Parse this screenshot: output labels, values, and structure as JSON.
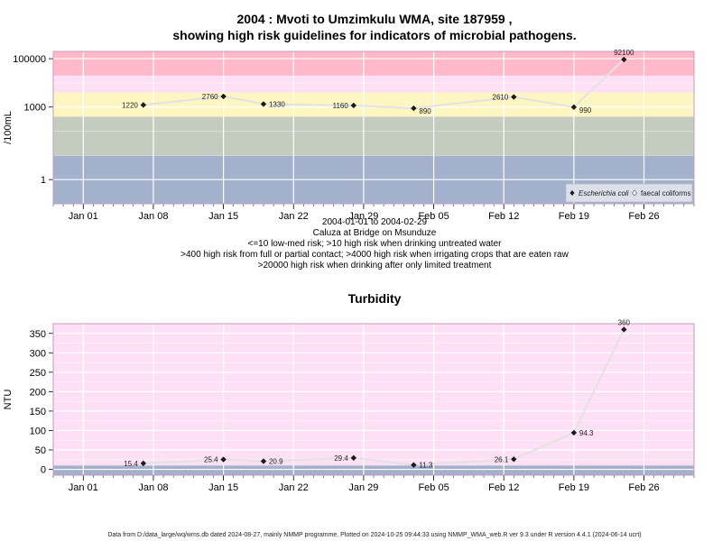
{
  "chart_data": [
    {
      "type": "line",
      "title": "2004 : Mvoti to Umzimkulu WMA, site 187959 ,",
      "subtitle": "showing high risk guidelines for indicators of microbial pathogens.",
      "ylabel": "/100mL",
      "yscale": "log",
      "ylim": [
        0.1,
        200000
      ],
      "xlim": [
        "2003-12-29",
        "2004-03-02"
      ],
      "yticks": [
        {
          "value": 1,
          "label": "1"
        },
        {
          "value": 1000,
          "label": "1000"
        },
        {
          "value": 100000,
          "label": "100000"
        }
      ],
      "xticks": [
        {
          "date": "2004-01-01",
          "label": "Jan 01"
        },
        {
          "date": "2004-01-08",
          "label": "Jan 08"
        },
        {
          "date": "2004-01-15",
          "label": "Jan 15"
        },
        {
          "date": "2004-01-22",
          "label": "Jan 22"
        },
        {
          "date": "2004-01-29",
          "label": "Jan 29"
        },
        {
          "date": "2004-02-05",
          "label": "Feb 05"
        },
        {
          "date": "2004-02-12",
          "label": "Feb 12"
        },
        {
          "date": "2004-02-19",
          "label": "Feb 19"
        },
        {
          "date": "2004-02-26",
          "label": "Feb 26"
        }
      ],
      "bands": [
        {
          "from": 0.1,
          "to": 10,
          "color": "#a3b1cc"
        },
        {
          "from": 10,
          "to": 400,
          "color": "#c4ccbf"
        },
        {
          "from": 400,
          "to": 4000,
          "color": "#fdf6c3"
        },
        {
          "from": 4000,
          "to": 20000,
          "color": "#fde0f5"
        },
        {
          "from": 20000,
          "to": 200000,
          "color": "#ffb9c9"
        }
      ],
      "series": [
        {
          "name": "Escherichia coli",
          "points": [
            {
              "date": "2004-01-07",
              "value": 1220,
              "label": "1220"
            },
            {
              "date": "2004-01-15",
              "value": 2760,
              "label": "2760"
            },
            {
              "date": "2004-01-19",
              "value": 1330,
              "label": "1330"
            },
            {
              "date": "2004-01-28",
              "value": 1160,
              "label": "1160"
            },
            {
              "date": "2004-02-03",
              "value": 890,
              "label": "890"
            },
            {
              "date": "2004-02-13",
              "value": 2610,
              "label": "2610"
            },
            {
              "date": "2004-02-19",
              "value": 990,
              "label": "990"
            },
            {
              "date": "2004-02-24",
              "value": 92100,
              "label": "92100"
            }
          ]
        }
      ],
      "legend": {
        "placement": "bottom-right",
        "entries": [
          "Escherichia coli",
          "faecal coliforms"
        ]
      },
      "notes": [
        "2004-01-01 to 2004-02-29",
        "Caluza at Bridge on Msunduze",
        "<=10 low-med risk; >10 high risk when drinking untreated water",
        ">400 high risk from full or partial contact; >4000 high risk when irrigating crops that are eaten raw",
        ">20000 high risk when drinking after only limited treatment"
      ]
    },
    {
      "type": "line",
      "title": "Turbidity",
      "ylabel": "NTU",
      "ylim": [
        -15,
        375
      ],
      "xlim": [
        "2003-12-29",
        "2004-03-02"
      ],
      "yticks": [
        {
          "value": 0,
          "label": "0"
        },
        {
          "value": 50,
          "label": "50"
        },
        {
          "value": 100,
          "label": "100"
        },
        {
          "value": 150,
          "label": "150"
        },
        {
          "value": 200,
          "label": "200"
        },
        {
          "value": 250,
          "label": "250"
        },
        {
          "value": 300,
          "label": "300"
        },
        {
          "value": 350,
          "label": "350"
        }
      ],
      "xticks": [
        {
          "date": "2004-01-01",
          "label": "Jan 01"
        },
        {
          "date": "2004-01-08",
          "label": "Jan 08"
        },
        {
          "date": "2004-01-15",
          "label": "Jan 15"
        },
        {
          "date": "2004-01-22",
          "label": "Jan 22"
        },
        {
          "date": "2004-01-29",
          "label": "Jan 29"
        },
        {
          "date": "2004-02-05",
          "label": "Feb 05"
        },
        {
          "date": "2004-02-12",
          "label": "Feb 12"
        },
        {
          "date": "2004-02-19",
          "label": "Feb 19"
        },
        {
          "date": "2004-02-26",
          "label": "Feb 26"
        }
      ],
      "bands": [
        {
          "from": -15,
          "to": 10,
          "color": "#a3b1cc"
        },
        {
          "from": 10,
          "to": 375,
          "color": "#fde0f5"
        }
      ],
      "series": [
        {
          "points": [
            {
              "date": "2004-01-07",
              "value": 15.4,
              "label": "15.4"
            },
            {
              "date": "2004-01-15",
              "value": 25.4,
              "label": "25.4"
            },
            {
              "date": "2004-01-19",
              "value": 20.9,
              "label": "20.9"
            },
            {
              "date": "2004-01-28",
              "value": 29.4,
              "label": "29.4"
            },
            {
              "date": "2004-02-03",
              "value": 11.3,
              "label": "11.3"
            },
            {
              "date": "2004-02-13",
              "value": 26.1,
              "label": "26.1"
            },
            {
              "date": "2004-02-19",
              "value": 94.3,
              "label": "94.3"
            },
            {
              "date": "2004-02-24",
              "value": 360,
              "label": "360"
            }
          ]
        }
      ]
    }
  ],
  "footer": "Data from D:/data_large/wq/wms.db dated 2024-08-27, mainly NMMP programme. Plotted on 2024-10-25 09:44:33 using NMMP_WMA_web.R ver 9.3 under R version 4.4.1 (2024-06-14 ucrt)"
}
